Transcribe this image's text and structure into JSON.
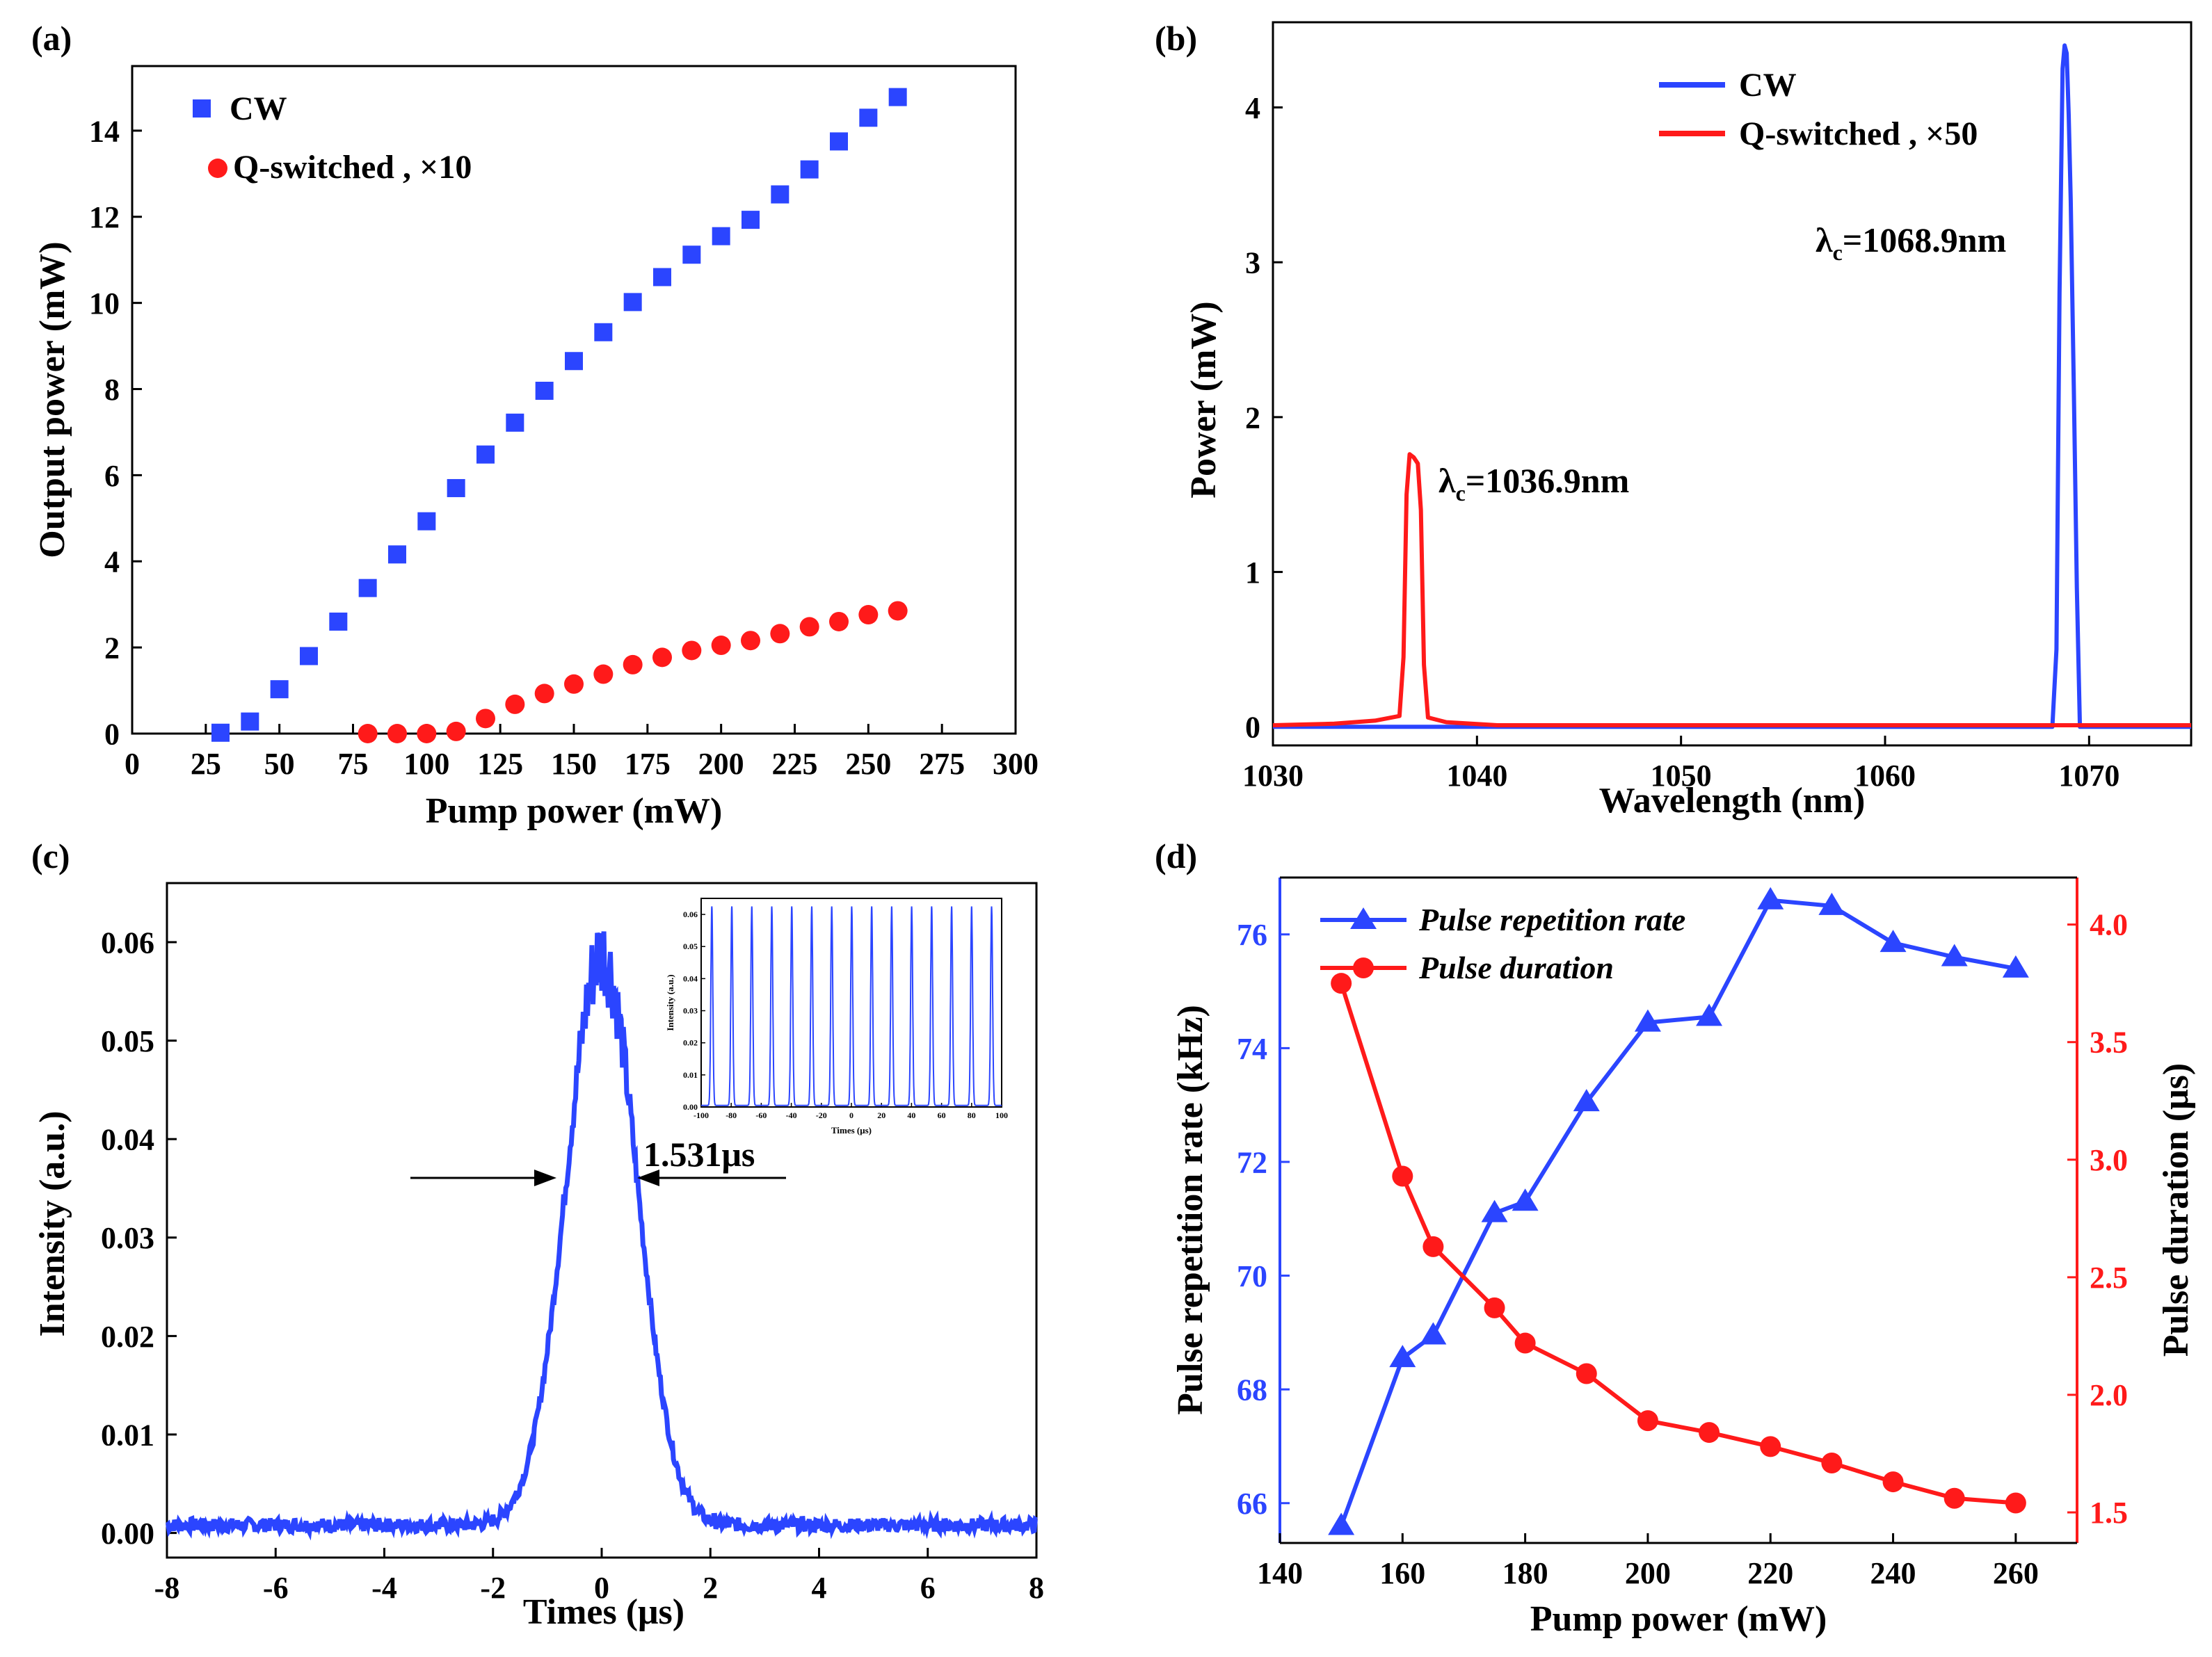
{
  "colors": {
    "blue": "#2b45ff",
    "red": "#ff1a1a",
    "axis": "#000000"
  },
  "chart_data": [
    {
      "panel": "(a)",
      "type": "scatter",
      "title": "",
      "xlabel": "Pump power (mW)",
      "ylabel": "Output power (mW)",
      "xlim": [
        0,
        300
      ],
      "ylim": [
        0,
        15.5
      ],
      "xticks": [
        0,
        25,
        50,
        75,
        100,
        125,
        150,
        175,
        200,
        225,
        250,
        275,
        300
      ],
      "yticks": [
        0,
        2,
        4,
        6,
        8,
        10,
        12,
        14
      ],
      "legend": "top-left",
      "series": [
        {
          "name": "CW",
          "marker": "square",
          "color": "#2b45ff",
          "x": [
            30,
            40,
            50,
            60,
            70,
            80,
            90,
            100,
            110,
            120,
            130,
            140,
            150,
            160,
            170,
            180,
            190,
            200,
            210,
            220,
            230,
            240,
            250,
            260
          ],
          "y": [
            0.02,
            0.28,
            1.03,
            1.8,
            2.6,
            3.38,
            4.16,
            4.93,
            5.7,
            6.48,
            7.22,
            7.96,
            8.65,
            9.32,
            10.02,
            10.6,
            11.12,
            11.55,
            11.93,
            12.52,
            13.1,
            13.75,
            14.3,
            14.78
          ]
        },
        {
          "name": "Q-switched , ×10",
          "marker": "circle",
          "color": "#ff1a1a",
          "x": [
            80,
            90,
            100,
            110,
            120,
            130,
            140,
            150,
            160,
            170,
            180,
            190,
            200,
            210,
            220,
            230,
            240,
            250,
            260
          ],
          "y": [
            0.0,
            0.0,
            0.0,
            0.05,
            0.35,
            0.68,
            0.93,
            1.15,
            1.38,
            1.6,
            1.77,
            1.93,
            2.05,
            2.16,
            2.32,
            2.48,
            2.6,
            2.76,
            2.85
          ]
        }
      ]
    },
    {
      "panel": "(b)",
      "type": "line",
      "title": "",
      "xlabel": "Wavelength (nm)",
      "ylabel": "Power (mW)",
      "xlim": [
        1030,
        1075
      ],
      "ylim": [
        -0.12,
        4.55
      ],
      "xticks": [
        1030,
        1040,
        1050,
        1060,
        1070
      ],
      "yticks": [
        0,
        1,
        2,
        3,
        4
      ],
      "legend": "top-right",
      "series": [
        {
          "name": "CW",
          "color": "#2b45ff",
          "x": [
            1030,
            1068.2,
            1068.4,
            1068.55,
            1068.7,
            1068.8,
            1068.9,
            1069.0,
            1069.1,
            1069.25,
            1069.4,
            1069.55,
            1070,
            1075
          ],
          "y": [
            0,
            0,
            0.5,
            2.8,
            4.25,
            4.4,
            4.35,
            3.95,
            3.4,
            2.2,
            0.9,
            0,
            0,
            0
          ]
        },
        {
          "name": "Q-switched , ×50",
          "color": "#ff1a1a",
          "x": [
            1030,
            1033,
            1035,
            1036.2,
            1036.4,
            1036.55,
            1036.7,
            1036.9,
            1037.1,
            1037.25,
            1037.4,
            1037.6,
            1038.5,
            1041,
            1075
          ],
          "y": [
            0.01,
            0.02,
            0.04,
            0.07,
            0.45,
            1.5,
            1.76,
            1.74,
            1.7,
            1.4,
            0.4,
            0.06,
            0.03,
            0.01,
            0.01
          ]
        }
      ],
      "annotations": [
        {
          "label": "λ",
          "sub": "c",
          "text": "=1068.9nm"
        },
        {
          "label": "λ",
          "sub": "c",
          "text": "=1036.9nm"
        }
      ]
    },
    {
      "panel": "(c)",
      "type": "line",
      "title": "",
      "xlabel": "Times (μs)",
      "ylabel": "Intensity (a.u.)",
      "xlim": [
        -8,
        8
      ],
      "ylim": [
        -0.0025,
        0.066
      ],
      "xticks": [
        -8,
        -6,
        -4,
        -2,
        0,
        2,
        4,
        6,
        8
      ],
      "yticks": [
        0.0,
        0.01,
        0.02,
        0.03,
        0.04,
        0.05,
        0.06
      ],
      "series": [
        {
          "name": "pulse",
          "color": "#2b45ff",
          "center": 0,
          "fwhm": 1.531,
          "peak": 0.058,
          "baseline": 0.0008
        }
      ],
      "annotations": [
        {
          "text": "1.531μs"
        }
      ],
      "inset": {
        "xlabel": "Times (μs)",
        "ylabel": "Intensity (a.u.)",
        "xlim": [
          -100,
          100
        ],
        "ylim": [
          0,
          0.065
        ],
        "xticks": [
          -100,
          -80,
          -60,
          -40,
          -20,
          0,
          20,
          40,
          60,
          80,
          100
        ],
        "yticks": [
          0.0,
          0.01,
          0.02,
          0.03,
          0.04,
          0.05,
          0.06
        ],
        "pulse_period": 13.3,
        "pulse_fwhm": 1.531,
        "peak": 0.062
      }
    },
    {
      "panel": "(d)",
      "type": "line",
      "title": "",
      "xlabel": "Pump power (mW)",
      "ylabel": "Pulse repetition rate (kHz)",
      "ylabel_right": "Pulse duration (μs)",
      "xlim": [
        140,
        270
      ],
      "ylim": [
        65.3,
        77.0
      ],
      "ylim_right": [
        1.37,
        4.2
      ],
      "xticks": [
        140,
        160,
        180,
        200,
        220,
        240,
        260
      ],
      "yticks": [
        66,
        68,
        70,
        72,
        74,
        76
      ],
      "yticks_right": [
        "1.5",
        "2.0",
        "2.5",
        "3.0",
        "3.5",
        "4.0"
      ],
      "legend": "top-left",
      "series": [
        {
          "name": "Pulse repetition rate",
          "axis": "left",
          "marker": "triangle",
          "color": "#2b45ff",
          "x": [
            150,
            160,
            165,
            175,
            180,
            190,
            200,
            210,
            220,
            230,
            240,
            250,
            260
          ],
          "y": [
            65.6,
            68.55,
            68.95,
            71.1,
            71.3,
            73.05,
            74.45,
            74.55,
            76.6,
            76.5,
            75.85,
            75.6,
            75.4
          ]
        },
        {
          "name": "Pulse duration",
          "axis": "right",
          "marker": "circle",
          "color": "#ff1a1a",
          "x": [
            150,
            160,
            165,
            175,
            180,
            190,
            200,
            210,
            220,
            230,
            240,
            250,
            260
          ],
          "y": [
            3.75,
            2.93,
            2.63,
            2.37,
            2.22,
            2.09,
            1.89,
            1.84,
            1.78,
            1.71,
            1.63,
            1.56,
            1.54
          ]
        }
      ]
    }
  ]
}
